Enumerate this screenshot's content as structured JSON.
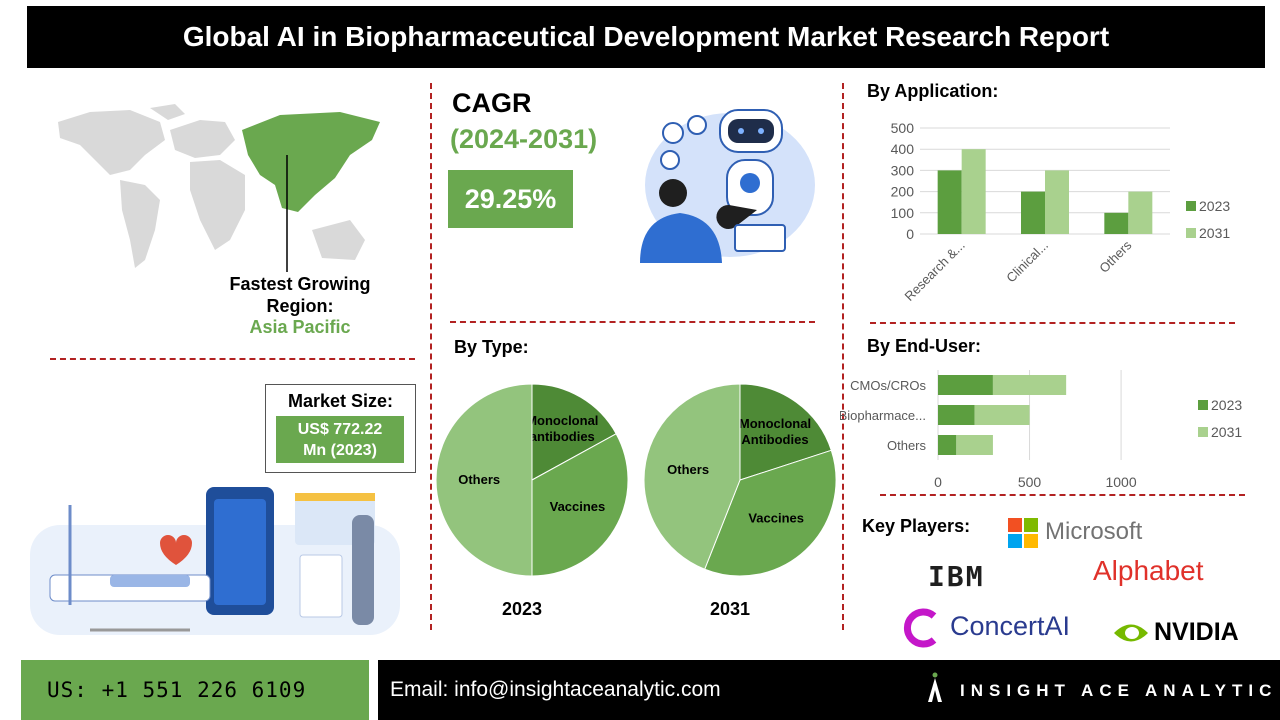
{
  "header": {
    "title": "Global AI in Biopharmaceutical Development Market Research Report"
  },
  "cagr": {
    "label": "CAGR",
    "period": "(2024-2031)",
    "value": "29.25%"
  },
  "region": {
    "title_line1": "Fastest Growing",
    "title_line2": "Region:",
    "name": "Asia Pacific"
  },
  "market_size": {
    "title": "Market Size:",
    "value_line1": "US$ 772.22",
    "value_line2": "Mn (2023)"
  },
  "sections": {
    "by_application": "By Application:",
    "by_type": "By Type:",
    "by_end_user": "By End-User:",
    "key_players": "Key Players:"
  },
  "key_players": [
    "Microsoft",
    "IBM",
    "Alphabet",
    "ConcertAI",
    "NVIDIA"
  ],
  "colors": {
    "dark_green": "#6aa84f",
    "mid_green": "#5c9e3f",
    "light_green": "#a9d18e",
    "darkest_green": "#4e8a36",
    "pale_green": "#93c47d",
    "dash_red": "#b22222",
    "header_bg": "#000000"
  },
  "footer": {
    "phone": "US: +1 551 226 6109",
    "email": "Email: info@insightaceanalytic.com",
    "brand": "INSIGHT ACE ANALYTIC"
  },
  "chart_data": [
    {
      "type": "bar",
      "title": "By Application:",
      "categories": [
        "Research &...",
        "Clinical...",
        "Others"
      ],
      "series": [
        {
          "name": "2023",
          "values": [
            300,
            200,
            100
          ]
        },
        {
          "name": "2031",
          "values": [
            400,
            300,
            200
          ]
        }
      ],
      "ylim": [
        0,
        500
      ],
      "yticks": [
        "0",
        "100",
        "200",
        "300",
        "400",
        "500"
      ],
      "grid": true,
      "legend": "right"
    },
    {
      "type": "bar",
      "title": "By End-User:",
      "orientation": "horizontal",
      "stacked": true,
      "categories": [
        "CMOs/CROs",
        "Biopharmace...",
        "Others"
      ],
      "series": [
        {
          "name": "2023",
          "values": [
            300,
            200,
            100
          ]
        },
        {
          "name": "2031",
          "values": [
            400,
            300,
            200
          ]
        }
      ],
      "xlim": [
        0,
        1300
      ],
      "xticks": [
        "0",
        "500",
        "1000"
      ],
      "grid": true,
      "legend": "right"
    },
    {
      "type": "pie",
      "title": "2023",
      "labels": [
        "Monoclonal antibodies",
        "Vaccines",
        "Others"
      ],
      "values": [
        17,
        33,
        50
      ]
    },
    {
      "type": "pie",
      "title": "2031",
      "labels": [
        "Monoclonal Antibodies",
        "Vaccines",
        "Others"
      ],
      "values": [
        20,
        36,
        44
      ]
    }
  ]
}
